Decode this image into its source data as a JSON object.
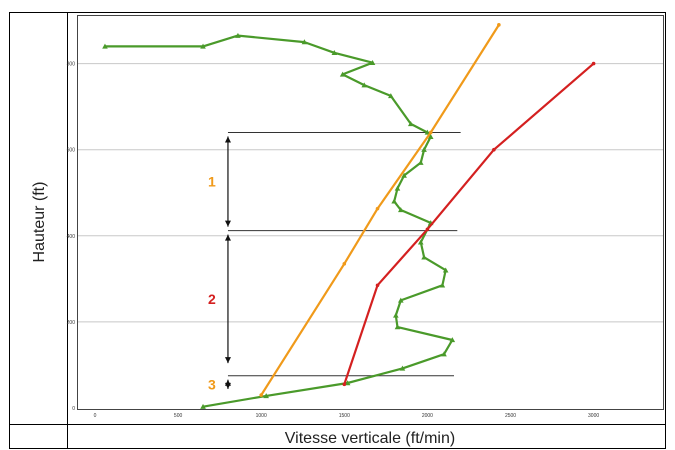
{
  "chart_data": {
    "type": "line",
    "title": "",
    "xlabel": "Vitesse verticale (ft/min)",
    "ylabel": "Hauteur (ft)",
    "xlim": [
      0,
      3400
    ],
    "ylim": [
      0,
      920
    ],
    "x_ticks": [
      0,
      500,
      1000,
      1500,
      2000,
      2500,
      3000
    ],
    "x_tick_labels": [
      "0",
      "500",
      "1000",
      "1500",
      "2000",
      "2500",
      "3000"
    ],
    "y_ticks": [
      0,
      200,
      400,
      600,
      800
    ],
    "y_tick_labels": [
      "0",
      "200",
      "400",
      "600",
      "800"
    ],
    "grid": "horizontal",
    "legend": "none",
    "series": [
      {
        "color": "#4a9a2a",
        "marker": "triangle",
        "points": [
          [
            650,
            3
          ],
          [
            1030,
            28
          ],
          [
            1520,
            58
          ],
          [
            1850,
            92
          ],
          [
            2100,
            125
          ],
          [
            2150,
            158
          ],
          [
            1820,
            188
          ],
          [
            1810,
            215
          ],
          [
            1840,
            250
          ],
          [
            2090,
            285
          ],
          [
            2110,
            320
          ],
          [
            1980,
            350
          ],
          [
            1960,
            385
          ],
          [
            2020,
            430
          ],
          [
            1840,
            460
          ],
          [
            1800,
            480
          ],
          [
            1820,
            510
          ],
          [
            1860,
            540
          ],
          [
            1960,
            570
          ],
          [
            1980,
            600
          ],
          [
            2020,
            630
          ],
          [
            2000,
            640
          ],
          [
            1900,
            660
          ],
          [
            1780,
            725
          ],
          [
            1620,
            750
          ],
          [
            1490,
            775
          ],
          [
            1670,
            802
          ],
          [
            1440,
            825
          ],
          [
            1260,
            850
          ],
          [
            860,
            865
          ],
          [
            650,
            840
          ],
          [
            60,
            840
          ]
        ]
      },
      {
        "color": "#f09a1a",
        "marker": "dot",
        "points": [
          [
            1000,
            30
          ],
          [
            1500,
            335
          ],
          [
            1700,
            463
          ],
          [
            2020,
            640
          ],
          [
            2430,
            890
          ]
        ]
      },
      {
        "color": "#d42020",
        "marker": "dot",
        "points": [
          [
            1500,
            55
          ],
          [
            1700,
            285
          ],
          [
            2000,
            415
          ],
          [
            2400,
            600
          ],
          [
            3000,
            800
          ]
        ]
      }
    ],
    "reference_lines": [
      {
        "y": 640,
        "x_from": 800,
        "x_to": 2200
      },
      {
        "y": 412,
        "x_from": 800,
        "x_to": 2180
      },
      {
        "y": 75,
        "x_from": 800,
        "x_to": 2160
      }
    ],
    "annotations": [
      {
        "label": "1",
        "color": "#f09a1a",
        "y_from": 640,
        "y_to": 412
      },
      {
        "label": "2",
        "color": "#d42020",
        "y_from": 412,
        "y_to": 95
      },
      {
        "label": "3",
        "color": "#f09a1a",
        "y_from": 75,
        "y_to": 35
      }
    ]
  }
}
